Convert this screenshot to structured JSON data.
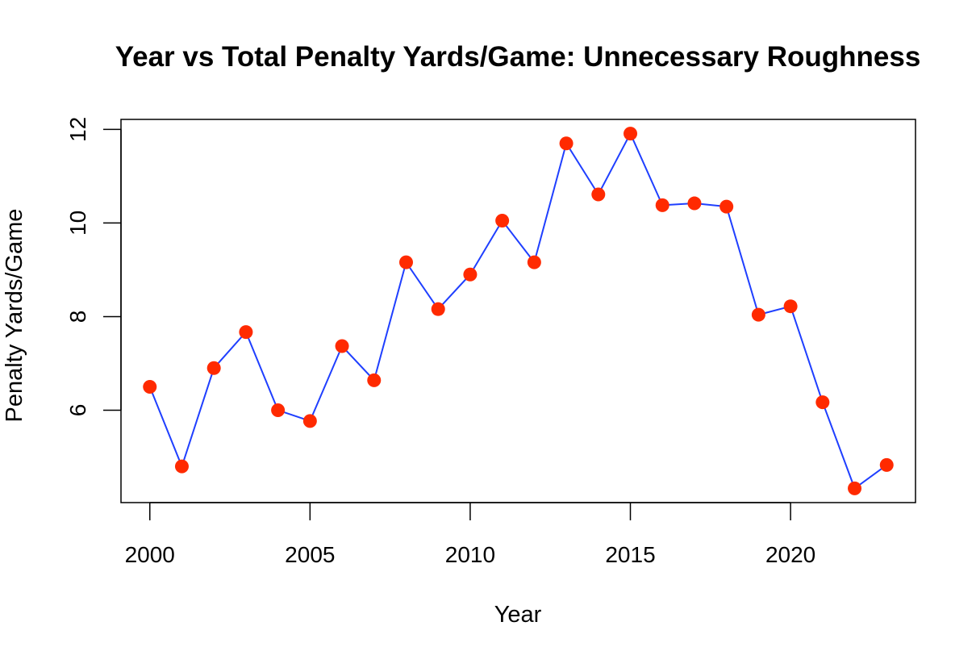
{
  "chart_data": {
    "type": "line",
    "title": "Year vs Total Penalty Yards/Game: Unnecessary Roughness",
    "xlabel": "Year",
    "ylabel": "Penalty Yards/Game",
    "x": [
      2000,
      2001,
      2002,
      2003,
      2004,
      2005,
      2006,
      2007,
      2008,
      2009,
      2010,
      2011,
      2012,
      2013,
      2014,
      2015,
      2016,
      2017,
      2018,
      2019,
      2020,
      2021,
      2022,
      2023
    ],
    "series": [
      {
        "values": [
          6.5,
          4.8,
          6.9,
          7.67,
          6.0,
          5.77,
          7.37,
          6.64,
          9.16,
          8.16,
          8.9,
          10.05,
          9.16,
          11.7,
          10.61,
          11.91,
          10.38,
          10.42,
          10.35,
          8.04,
          8.22,
          6.17,
          4.33,
          4.83
        ],
        "line_color": "#1f3fff",
        "point_color": "#ff2a00"
      }
    ],
    "xlim": [
      1999.1,
      2023.9
    ],
    "ylim": [
      4.33,
      11.91
    ],
    "xticks": [
      2000,
      2005,
      2010,
      2015,
      2020
    ],
    "yticks": [
      6,
      8,
      10,
      12
    ],
    "grid": false,
    "legend": "none"
  }
}
